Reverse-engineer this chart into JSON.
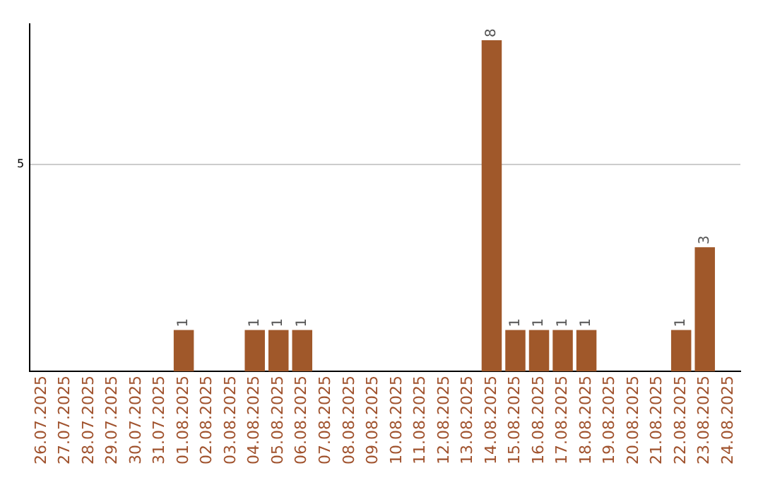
{
  "chart_data": {
    "type": "bar",
    "categories": [
      "26.07.2025",
      "27.07.2025",
      "28.07.2025",
      "29.07.2025",
      "30.07.2025",
      "31.07.2025",
      "01.08.2025",
      "02.08.2025",
      "03.08.2025",
      "04.08.2025",
      "05.08.2025",
      "06.08.2025",
      "07.08.2025",
      "08.08.2025",
      "09.08.2025",
      "10.08.2025",
      "11.08.2025",
      "12.08.2025",
      "13.08.2025",
      "14.08.2025",
      "15.08.2025",
      "16.08.2025",
      "17.08.2025",
      "18.08.2025",
      "19.08.2025",
      "20.08.2025",
      "21.08.2025",
      "22.08.2025",
      "23.08.2025",
      "24.08.2025"
    ],
    "values": [
      0,
      0,
      0,
      0,
      0,
      0,
      1,
      0,
      0,
      1,
      1,
      1,
      0,
      0,
      0,
      0,
      0,
      0,
      0,
      8,
      1,
      1,
      1,
      1,
      0,
      0,
      0,
      1,
      3,
      0
    ],
    "value_labels": [
      null,
      null,
      null,
      null,
      null,
      null,
      "1",
      null,
      null,
      "1",
      "1",
      "1",
      null,
      null,
      null,
      null,
      null,
      null,
      null,
      "8",
      "1",
      "1",
      "1",
      "1",
      null,
      null,
      null,
      "1",
      "3",
      null
    ],
    "color": "#a0582a",
    "ylim": [
      0,
      8.4
    ],
    "yticks": [
      5
    ],
    "grid": "y",
    "legend": false
  }
}
